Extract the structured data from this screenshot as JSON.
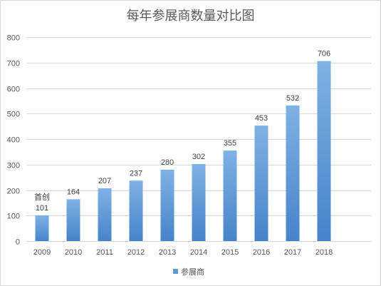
{
  "chart_data": {
    "type": "bar",
    "title": "每年参展商数量对比图",
    "xlabel": "",
    "ylabel": "",
    "categories": [
      "2009",
      "2010",
      "2011",
      "2012",
      "2013",
      "2014",
      "2015",
      "2016",
      "2017",
      "2018"
    ],
    "series": [
      {
        "name": "参展商",
        "values": [
          101,
          164,
          207,
          237,
          280,
          302,
          355,
          453,
          532,
          706
        ],
        "color": "#5b9bd5"
      }
    ],
    "ylim": [
      0,
      800
    ],
    "yticks": [
      0,
      100,
      200,
      300,
      400,
      500,
      600,
      700,
      800
    ],
    "grid": true,
    "data_labels": true,
    "legend_position": "bottom",
    "annotations": [
      {
        "category": "2009",
        "text": "首创"
      }
    ]
  },
  "colors": {
    "bar_gradient_top": "#7fb2e4",
    "bar_gradient_bottom": "#4683c9",
    "gridline": "#d9d9d9",
    "frame_border": "#d9d9d9",
    "background": "#ffffff"
  }
}
